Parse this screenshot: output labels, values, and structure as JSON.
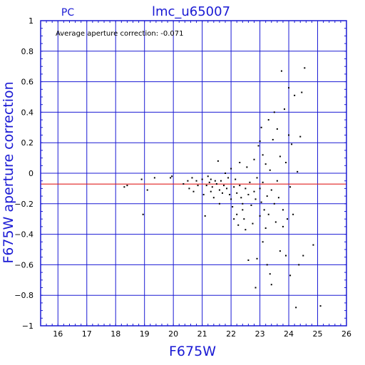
{
  "chart_data": {
    "type": "scatter",
    "title": "lmc_u65007",
    "subtitle": "PC",
    "xlabel": "F675W",
    "ylabel": "F675W aperture correction",
    "annotation": "Average aperture correction: -0.071",
    "xlim": [
      15.4,
      26
    ],
    "ylim": [
      -1,
      1
    ],
    "x_ticks": [
      16,
      17,
      18,
      19,
      20,
      21,
      22,
      23,
      24,
      25,
      26
    ],
    "y_ticks": [
      -1,
      -0.8,
      -0.6,
      -0.4,
      -0.2,
      0,
      0.2,
      0.4,
      0.6,
      0.8,
      1
    ],
    "x_tick_labels": [
      "16",
      "17",
      "18",
      "19",
      "20",
      "21",
      "22",
      "23",
      "24",
      "25",
      "26"
    ],
    "y_tick_labels": [
      "−1",
      "−0.8",
      "−0.6",
      "−0.4",
      "−0.2",
      "0",
      "0.2",
      "0.4",
      "0.6",
      "0.8",
      "1"
    ],
    "grid": true,
    "reference_line": {
      "y": -0.071,
      "color": "#e02020"
    },
    "colors": {
      "axis": "#1a1ad4",
      "grid": "#1a1ad4",
      "points": "#000000",
      "reference": "#e02020"
    },
    "points": [
      [
        18.3,
        -0.09
      ],
      [
        18.4,
        -0.08
      ],
      [
        18.9,
        -0.04
      ],
      [
        18.95,
        -0.27
      ],
      [
        19.1,
        -0.11
      ],
      [
        19.35,
        -0.03
      ],
      [
        19.9,
        -0.03
      ],
      [
        19.95,
        -0.02
      ],
      [
        20.35,
        -0.07
      ],
      [
        20.5,
        -0.05
      ],
      [
        20.55,
        -0.1
      ],
      [
        20.65,
        -0.03
      ],
      [
        20.7,
        -0.12
      ],
      [
        20.8,
        -0.05
      ],
      [
        20.85,
        -0.08
      ],
      [
        21.0,
        -0.04
      ],
      [
        21.05,
        -0.14
      ],
      [
        21.1,
        -0.28
      ],
      [
        21.15,
        -0.08
      ],
      [
        21.2,
        -0.02
      ],
      [
        21.25,
        -0.06
      ],
      [
        21.3,
        -0.04
      ],
      [
        21.3,
        -0.12
      ],
      [
        21.35,
        -0.09
      ],
      [
        21.4,
        -0.16
      ],
      [
        21.45,
        -0.05
      ],
      [
        21.5,
        -0.07
      ],
      [
        21.55,
        0.08
      ],
      [
        21.6,
        -0.2
      ],
      [
        21.6,
        -0.11
      ],
      [
        21.65,
        -0.05
      ],
      [
        21.7,
        -0.13
      ],
      [
        21.75,
        -0.08
      ],
      [
        21.8,
        0.0
      ],
      [
        21.85,
        -0.1
      ],
      [
        21.9,
        -0.03
      ],
      [
        21.95,
        -0.14
      ],
      [
        22.0,
        0.03
      ],
      [
        22.0,
        -0.17
      ],
      [
        22.05,
        -0.22
      ],
      [
        22.1,
        -0.09
      ],
      [
        22.1,
        -0.3
      ],
      [
        22.15,
        -0.04
      ],
      [
        22.2,
        -0.27
      ],
      [
        22.2,
        -0.13
      ],
      [
        22.25,
        -0.34
      ],
      [
        22.3,
        -0.08
      ],
      [
        22.3,
        0.07
      ],
      [
        22.35,
        -0.16
      ],
      [
        22.4,
        -0.24
      ],
      [
        22.4,
        -0.2
      ],
      [
        22.45,
        -0.3
      ],
      [
        22.5,
        -0.1
      ],
      [
        22.5,
        -0.37
      ],
      [
        22.55,
        0.04
      ],
      [
        22.6,
        -0.14
      ],
      [
        22.6,
        -0.57
      ],
      [
        22.65,
        -0.06
      ],
      [
        22.7,
        -0.21
      ],
      [
        22.75,
        -0.33
      ],
      [
        22.8,
        -0.12
      ],
      [
        22.8,
        0.09
      ],
      [
        22.85,
        -0.17
      ],
      [
        22.85,
        -0.75
      ],
      [
        22.9,
        -0.03
      ],
      [
        22.9,
        -0.56
      ],
      [
        22.95,
        0.18
      ],
      [
        23.0,
        -0.1
      ],
      [
        23.0,
        -0.28
      ],
      [
        23.0,
        0.21
      ],
      [
        23.05,
        -0.19
      ],
      [
        23.05,
        0.3
      ],
      [
        23.1,
        -0.45
      ],
      [
        23.1,
        0.12
      ],
      [
        23.1,
        -0.06
      ],
      [
        23.15,
        -0.24
      ],
      [
        23.2,
        -0.36
      ],
      [
        23.2,
        0.06
      ],
      [
        23.25,
        -0.15
      ],
      [
        23.25,
        -0.6
      ],
      [
        23.3,
        0.35
      ],
      [
        23.3,
        -0.27
      ],
      [
        23.35,
        0.02
      ],
      [
        23.35,
        -0.66
      ],
      [
        23.4,
        -0.73
      ],
      [
        23.4,
        -0.11
      ],
      [
        23.45,
        0.22
      ],
      [
        23.5,
        -0.2
      ],
      [
        23.5,
        0.4
      ],
      [
        23.55,
        -0.32
      ],
      [
        23.6,
        -0.05
      ],
      [
        23.6,
        0.29
      ],
      [
        23.65,
        -0.16
      ],
      [
        23.7,
        -0.51
      ],
      [
        23.7,
        0.11
      ],
      [
        23.75,
        0.67
      ],
      [
        23.8,
        -0.24
      ],
      [
        23.8,
        -0.35
      ],
      [
        23.85,
        0.42
      ],
      [
        23.9,
        0.07
      ],
      [
        23.9,
        -0.54
      ],
      [
        23.95,
        -0.3
      ],
      [
        24.0,
        0.56
      ],
      [
        24.0,
        0.25
      ],
      [
        24.05,
        -0.09
      ],
      [
        24.05,
        -0.67
      ],
      [
        24.1,
        0.19
      ],
      [
        24.15,
        -0.27
      ],
      [
        24.2,
        0.51
      ],
      [
        24.25,
        -0.88
      ],
      [
        24.3,
        0.01
      ],
      [
        24.35,
        -0.6
      ],
      [
        24.4,
        0.24
      ],
      [
        24.45,
        0.53
      ],
      [
        24.5,
        -0.54
      ],
      [
        24.55,
        0.69
      ],
      [
        24.85,
        -0.47
      ],
      [
        25.1,
        -0.87
      ]
    ]
  }
}
